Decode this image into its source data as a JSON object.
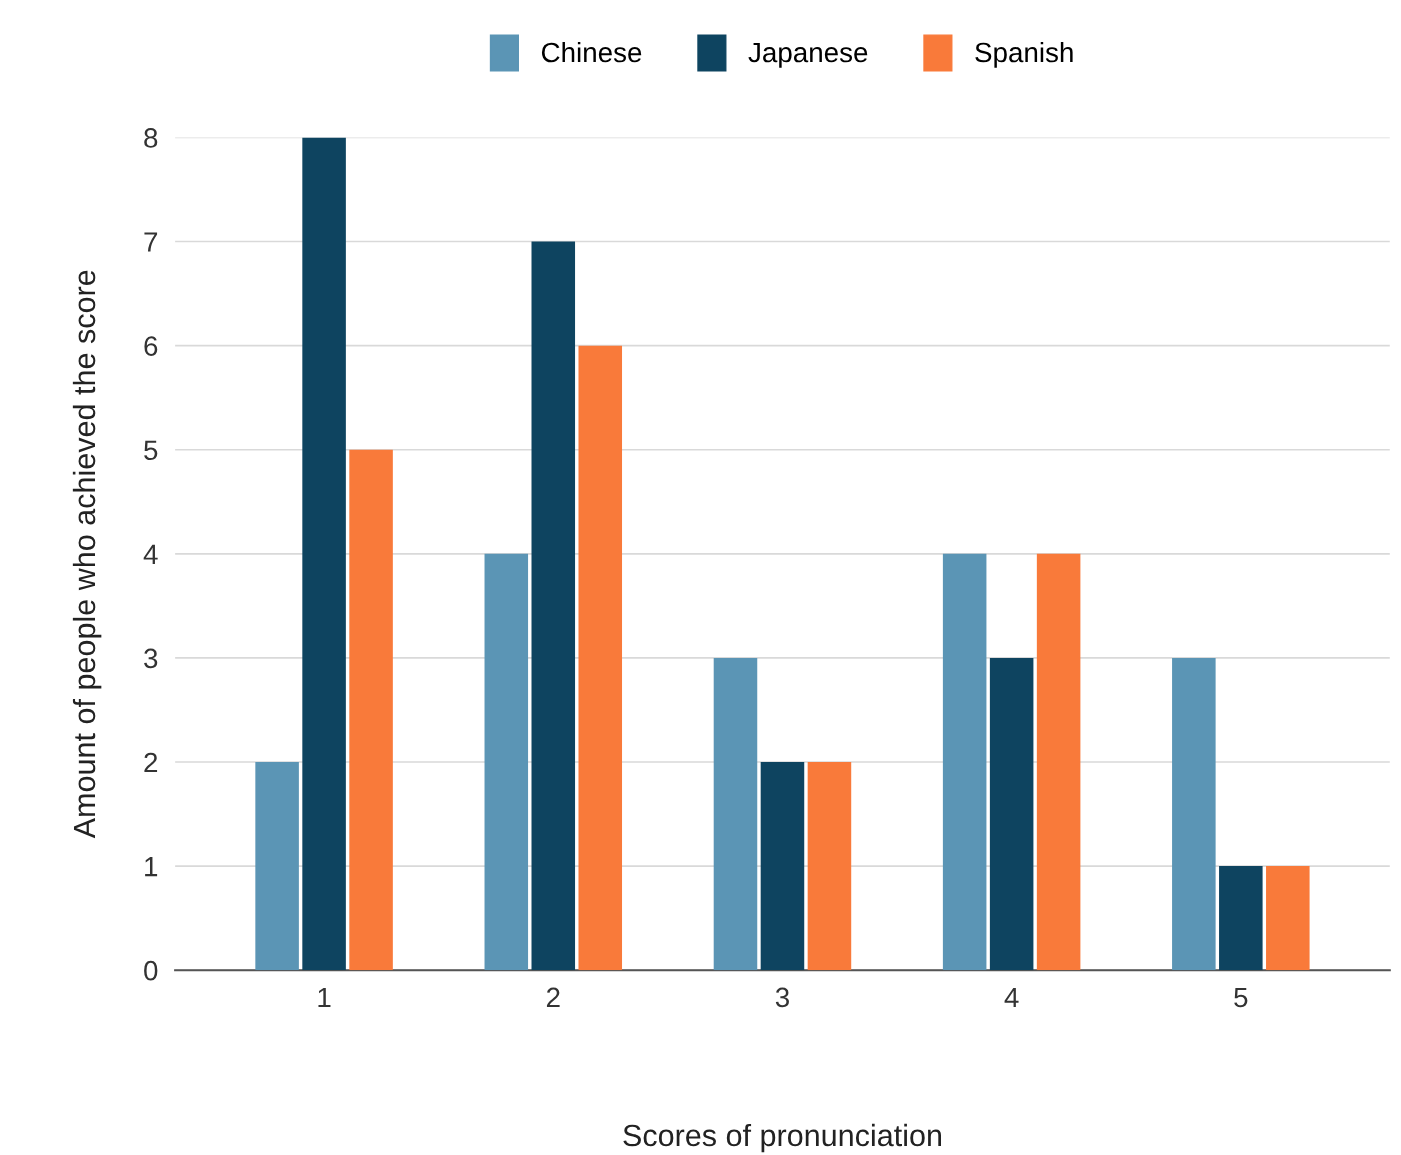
{
  "chart_data": {
    "type": "bar",
    "xlabel": "Scores of pronunciation",
    "ylabel": "Amount of people who achieved the score",
    "categories": [
      "1",
      "2",
      "3",
      "4",
      "5"
    ],
    "series": [
      {
        "name": "Chinese",
        "color": "#5b95b5",
        "values": [
          2,
          4,
          3,
          4,
          3
        ]
      },
      {
        "name": "Japanese",
        "color": "#0e4460",
        "values": [
          8,
          7,
          2,
          3,
          1
        ]
      },
      {
        "name": "Spanish",
        "color": "#f97a3a",
        "values": [
          5,
          6,
          2,
          4,
          1
        ]
      }
    ],
    "ylim": [
      0,
      8
    ],
    "yticks": [
      0,
      1,
      2,
      3,
      4,
      5,
      6,
      7,
      8
    ],
    "grid": "y",
    "legend": "top"
  }
}
